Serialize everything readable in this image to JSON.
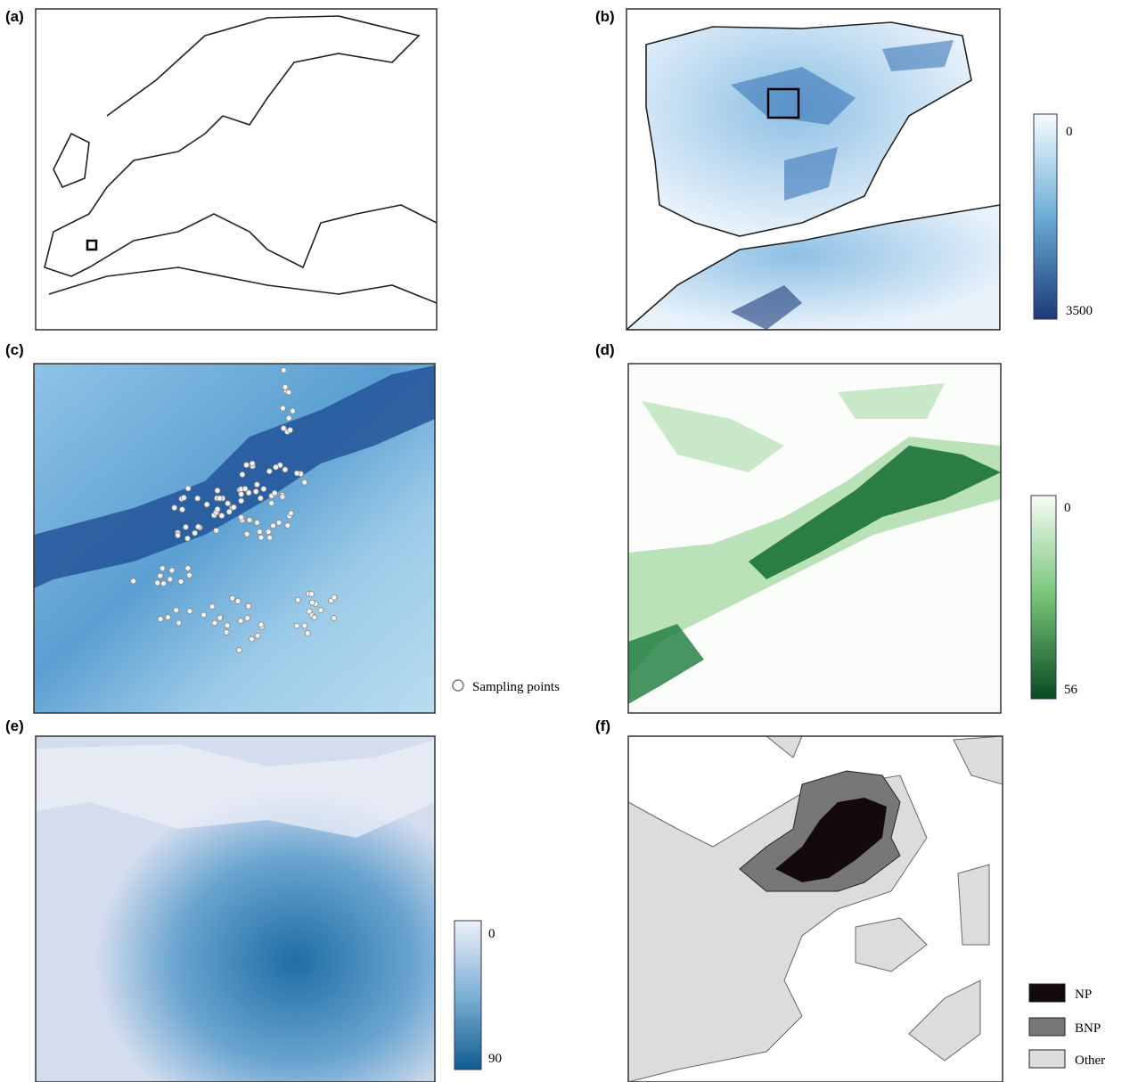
{
  "panels": [
    {
      "label": "(a)"
    },
    {
      "label": "(b)",
      "legend": {
        "min": 0,
        "max": 3500
      }
    },
    {
      "label": "(c)",
      "legend": {
        "text": "Sampling points"
      }
    },
    {
      "label": "(d)",
      "legend": {
        "min": 0,
        "max": 56
      }
    },
    {
      "label": "(e)",
      "legend": {
        "min": 0,
        "max": 90
      }
    },
    {
      "label": "(f)",
      "legend": {
        "items": [
          "NP",
          "BNP",
          "Other"
        ]
      }
    }
  ]
}
